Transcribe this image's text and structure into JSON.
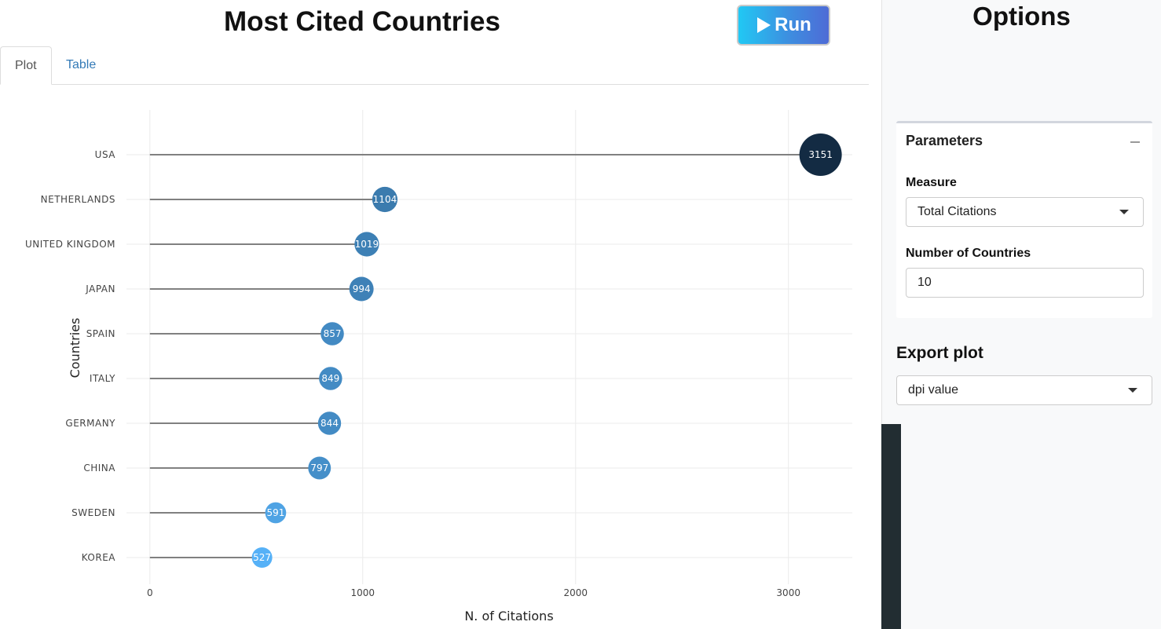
{
  "header": {
    "title": "Most Cited Countries",
    "run_label": "Run"
  },
  "tabs": [
    {
      "label": "Plot",
      "active": true
    },
    {
      "label": "Table",
      "active": false
    }
  ],
  "chart_data": {
    "type": "lollipop",
    "xlabel": "N. of Citations",
    "ylabel": "Countries",
    "xlim": [
      -110,
      3300
    ],
    "xticks": [
      0,
      1000,
      2000,
      3000
    ],
    "grid": true,
    "categories": [
      "USA",
      "NETHERLANDS",
      "UNITED KINGDOM",
      "JAPAN",
      "SPAIN",
      "ITALY",
      "GERMANY",
      "CHINA",
      "SWEDEN",
      "KOREA"
    ],
    "values": [
      3151,
      1104,
      1019,
      994,
      857,
      849,
      844,
      797,
      591,
      527
    ],
    "color_scale": [
      "#56b1f7",
      "#132b43"
    ],
    "stem_color": "#808080"
  },
  "sidebar": {
    "title": "Options",
    "parameters": {
      "header": "Parameters",
      "measure_label": "Measure",
      "measure_value": "Total Citations",
      "countries_label": "Number of Countries",
      "countries_value": "10"
    },
    "export": {
      "title": "Export plot",
      "dpi_value": "dpi value"
    }
  }
}
